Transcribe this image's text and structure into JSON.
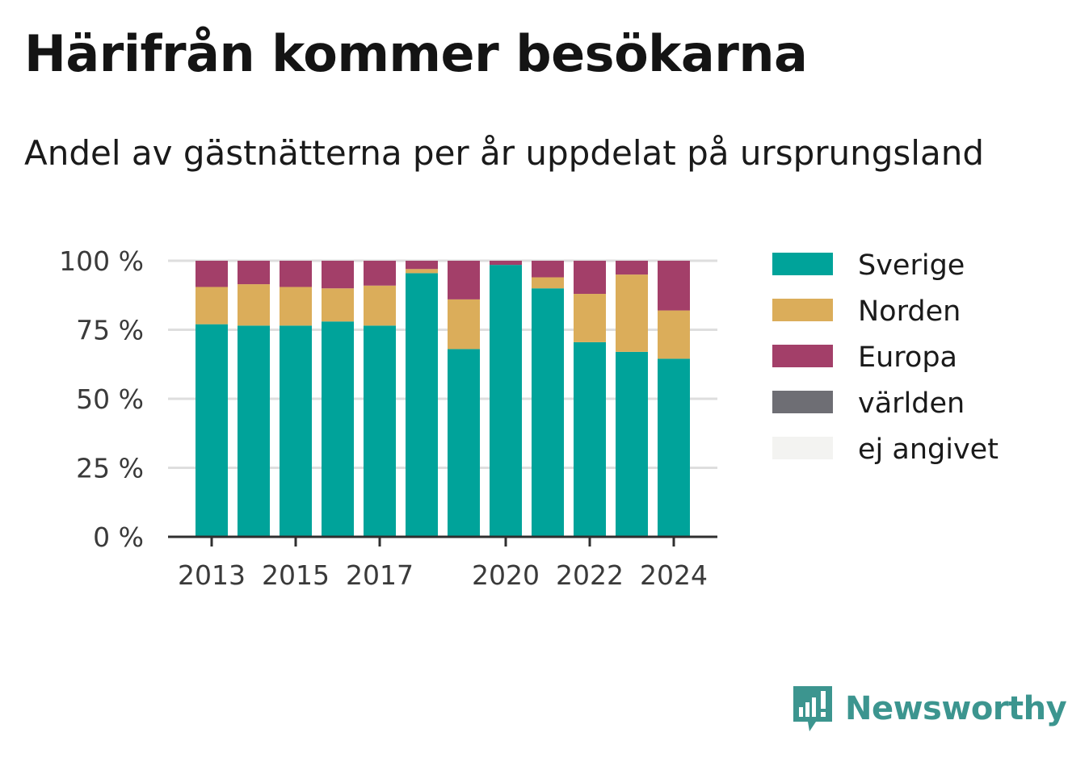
{
  "header": {
    "title": "Härifrån kommer besökarna",
    "subtitle": "Andel av gästnätterna per år uppdelat på ursprungsland"
  },
  "chart_data": {
    "type": "bar",
    "stacked": true,
    "categories": [
      "2013",
      "2014",
      "2015",
      "2016",
      "2017",
      "2018",
      "2019",
      "2020",
      "2021",
      "2022",
      "2023",
      "2024"
    ],
    "x_tick_labels": [
      "2013",
      "2015",
      "2017",
      "2020",
      "2022",
      "2024"
    ],
    "y_tick_labels": [
      "0 %",
      "25 %",
      "50 %",
      "75 %",
      "100 %"
    ],
    "y_ticks": [
      0,
      25,
      50,
      75,
      100
    ],
    "ylim": [
      0,
      100
    ],
    "grid": true,
    "legend_position": "right",
    "series": [
      {
        "name": "Sverige",
        "color": "#00a39a",
        "values": [
          77,
          76.5,
          76.5,
          78,
          76.5,
          95.5,
          68,
          98.5,
          90,
          70.5,
          67,
          64.5
        ]
      },
      {
        "name": "Norden",
        "color": "#dbad5a",
        "values": [
          13.5,
          15,
          14,
          12,
          14.5,
          1.5,
          18,
          0,
          4,
          17.5,
          28,
          17.5
        ]
      },
      {
        "name": "Europa",
        "color": "#a33f69",
        "values": [
          9.5,
          8.5,
          9.5,
          10,
          9,
          3,
          14,
          1.5,
          6,
          12,
          5,
          18
        ]
      },
      {
        "name": "världen",
        "color": "#6e6e74",
        "values": [
          0,
          0,
          0,
          0,
          0,
          0,
          0,
          0,
          0,
          0,
          0,
          0
        ]
      },
      {
        "name": "ej angivet",
        "color": "#f3f3f1",
        "values": [
          0,
          0,
          0,
          0,
          0,
          0,
          0,
          0,
          0,
          0,
          0,
          0
        ]
      }
    ]
  },
  "brand": {
    "name": "Newsworthy",
    "logo_icon": "newsworthy-logo-icon",
    "color": "#3c958f"
  }
}
